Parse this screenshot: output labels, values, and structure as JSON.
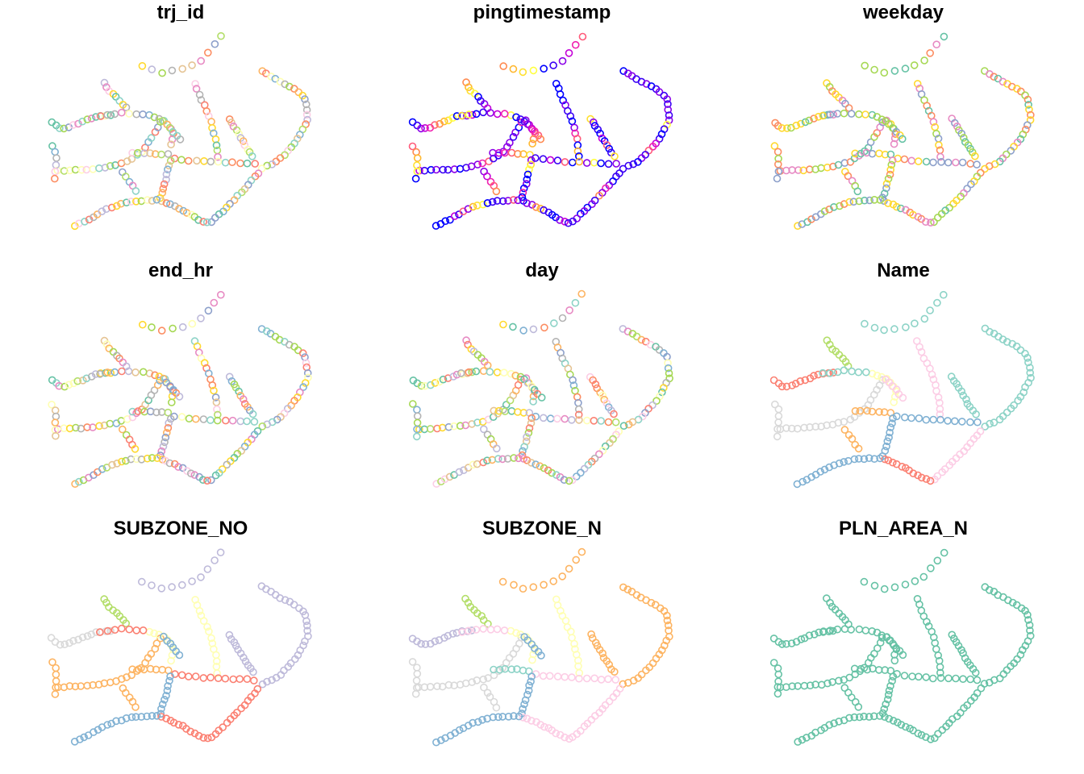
{
  "colors": {
    "background": "#ffffff",
    "title": "#000000",
    "set3": [
      "#8DD3C7",
      "#FFFFB3",
      "#BEBADA",
      "#FB8072",
      "#80B1D3",
      "#FDB462",
      "#B3DE69",
      "#FCCDE5",
      "#D9D9D9",
      "#BC80BD",
      "#CCEBC5",
      "#FFED6F"
    ],
    "multi": [
      "#66C2A5",
      "#FC8D62",
      "#8DA0CB",
      "#E78AC3",
      "#A6D854",
      "#FFD92F",
      "#E5C494",
      "#B3B3B3",
      "#8DD3C7",
      "#FB8072",
      "#80B1D3",
      "#FDB462",
      "#B3DE69",
      "#FCCDE5",
      "#BEBADA",
      "#FFFFB3"
    ],
    "time": [
      "#0000FF",
      "#3A00F5",
      "#8A00E8",
      "#C400D8",
      "#F020B0",
      "#FF5A7A",
      "#FF8A50",
      "#FFB830",
      "#FFE030",
      "#FFFF40"
    ],
    "plnarea": "#66C2A5"
  },
  "chart_data": [
    {
      "type": "scatter",
      "title": "trj_id",
      "marker": "open-circle",
      "color_mode": "random",
      "palette": "multi"
    },
    {
      "type": "scatter",
      "title": "pingtimestamp",
      "marker": "open-circle",
      "color_mode": "timestamp",
      "palette": "time"
    },
    {
      "type": "scatter",
      "title": "weekday",
      "marker": "open-circle",
      "color_mode": "random",
      "palette": "weekday"
    },
    {
      "type": "scatter",
      "title": "end_hr",
      "marker": "open-circle",
      "color_mode": "random",
      "palette": "multi"
    },
    {
      "type": "scatter",
      "title": "day",
      "marker": "open-circle",
      "color_mode": "random",
      "palette": "multi"
    },
    {
      "type": "scatter",
      "title": "Name",
      "marker": "open-circle",
      "color_mode": "zone",
      "zones": [
        "#FB8072",
        "#D9D9D9",
        "#B3DE69",
        "#FFFFB3",
        "#FDB462",
        "#FCCDE5",
        "#8DD3C7",
        "#80B1D3",
        "#8DD3C7",
        "#80B1D3",
        "#FCCDE5",
        "#FB8072",
        "#8DD3C7",
        "#80B1D3",
        "#FDB462",
        "#D9D9D9",
        "#8DD3C7",
        "#FCCDE5"
      ]
    },
    {
      "type": "scatter",
      "title": "SUBZONE_NO",
      "marker": "open-circle",
      "color_mode": "zone",
      "zones": [
        "#D9D9D9",
        "#FDB462",
        "#B3DE69",
        "#FFFFB3",
        "#FDB462",
        "#FFFFB3",
        "#BEBADA",
        "#FB8072",
        "#BEBADA",
        "#80B1D3",
        "#FB8072",
        "#FB8072",
        "#BEBADA",
        "#80B1D3",
        "#FDB462",
        "#FDB462",
        "#FB8072",
        "#80B1D3"
      ]
    },
    {
      "type": "scatter",
      "title": "SUBZONE_N",
      "marker": "open-circle",
      "color_mode": "zone",
      "zones": [
        "#BEBADA",
        "#D9D9D9",
        "#B3DE69",
        "#FFFFB3",
        "#8DD3C7",
        "#FFFFB3",
        "#FDB462",
        "#FCCDE5",
        "#FDB462",
        "#80B1D3",
        "#FCCDE5",
        "#FCCDE5",
        "#FDB462",
        "#80B1D3",
        "#D9D9D9",
        "#D9D9D9",
        "#FCCDE5",
        "#80B1D3"
      ]
    },
    {
      "type": "scatter",
      "title": "PLN_AREA_N",
      "marker": "open-circle",
      "color_mode": "single"
    }
  ]
}
